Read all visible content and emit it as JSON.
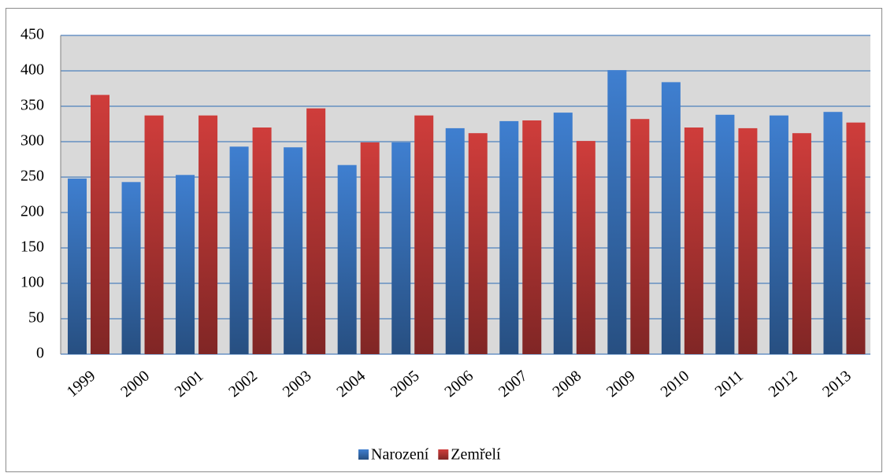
{
  "chart_data": {
    "type": "bar",
    "categories": [
      "1999",
      "2000",
      "2001",
      "2002",
      "2003",
      "2004",
      "2005",
      "2006",
      "2007",
      "2008",
      "2009",
      "2010",
      "2011",
      "2012",
      "2013"
    ],
    "series": [
      {
        "name": "Narození",
        "color": "#3f7fd0",
        "values": [
          248,
          243,
          253,
          293,
          292,
          267,
          299,
          319,
          329,
          341,
          401,
          384,
          338,
          337,
          342
        ]
      },
      {
        "name": "Zemřelí",
        "color": "#cf3d3b",
        "values": [
          366,
          337,
          337,
          320,
          347,
          299,
          337,
          312,
          330,
          301,
          332,
          320,
          319,
          312,
          327
        ]
      }
    ],
    "ylim": [
      0,
      450
    ],
    "yticks": [
      0,
      50,
      100,
      150,
      200,
      250,
      300,
      350,
      400,
      450
    ],
    "grid": true,
    "legend": "bottom"
  }
}
